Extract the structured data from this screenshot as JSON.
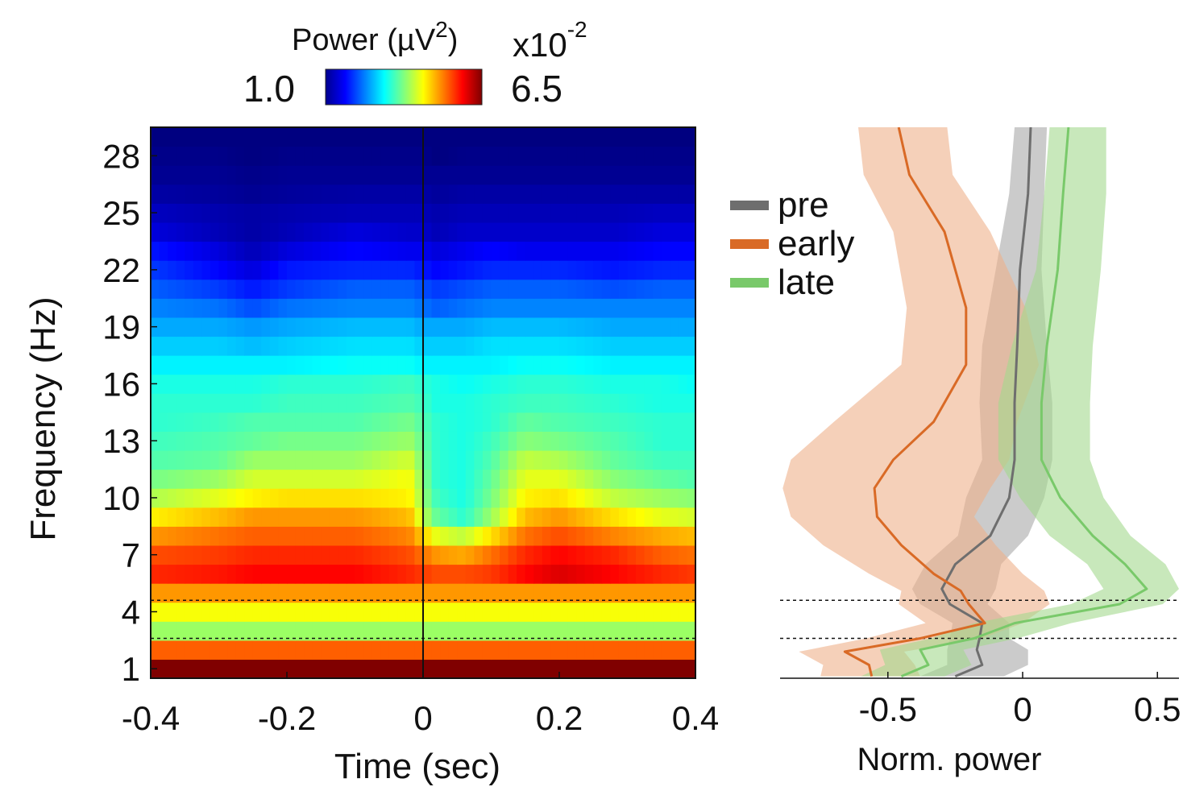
{
  "colorbar": {
    "title": "Power (µV",
    "title_sup": "2",
    "title_close": ")",
    "multiplier": "x10",
    "multiplier_exp": "-2",
    "min_label": "1.0",
    "max_label": "6.5",
    "colormap": "jet"
  },
  "chart_data": [
    {
      "type": "heatmap",
      "name": "time-frequency power",
      "xlabel": "Time (sec)",
      "ylabel": "Frequency (Hz)",
      "xlim": [
        -0.4,
        0.4
      ],
      "ylim": [
        0.5,
        29.5
      ],
      "x_ticks": [
        -0.4,
        -0.2,
        0,
        0.2,
        0.4
      ],
      "x_tick_labels": [
        "-0.4",
        "-0.2",
        "0",
        "0.2",
        "0.4"
      ],
      "y_ticks": [
        1,
        4,
        7,
        10,
        13,
        16,
        19,
        22,
        25,
        28
      ],
      "y_tick_labels": [
        "1",
        "4",
        "7",
        "10",
        "13",
        "16",
        "19",
        "22",
        "25",
        "28"
      ],
      "color_range": [
        1.0,
        6.5
      ],
      "color_unit_multiplier": 0.01,
      "event_line_x": 0,
      "dashed_lines_y": [
        2.6,
        4.6
      ],
      "y_bins": [
        1,
        2,
        3,
        4,
        5,
        6,
        7,
        8,
        9,
        10,
        11,
        12,
        13,
        14,
        15,
        16,
        17,
        18,
        19,
        20,
        21,
        22,
        23,
        24,
        25,
        26,
        27,
        28,
        29
      ],
      "profile_time_points": [
        -0.4,
        -0.3,
        -0.25,
        -0.2,
        -0.1,
        -0.02,
        0,
        0.02,
        0.06,
        0.1,
        0.15,
        0.2,
        0.28,
        0.35,
        0.4
      ],
      "profiles": {
        "1": [
          6.5,
          6.5,
          6.5,
          6.5,
          6.5,
          6.5,
          6.5,
          6.5,
          6.5,
          6.5,
          6.5,
          6.5,
          6.5,
          6.5,
          6.5
        ],
        "2": [
          5.3,
          5.3,
          5.3,
          5.3,
          5.3,
          5.3,
          5.3,
          5.3,
          5.3,
          5.3,
          5.3,
          5.3,
          5.3,
          5.3,
          5.3
        ],
        "3": [
          3.9,
          3.9,
          3.9,
          3.9,
          3.9,
          3.9,
          3.9,
          3.9,
          3.9,
          3.9,
          3.9,
          3.9,
          3.9,
          3.9,
          3.9
        ],
        "4": [
          4.4,
          4.4,
          4.4,
          4.4,
          4.4,
          4.4,
          4.4,
          4.4,
          4.4,
          4.4,
          4.4,
          4.4,
          4.4,
          4.4,
          4.4
        ],
        "5": [
          5.0,
          5.0,
          5.0,
          5.0,
          5.0,
          5.0,
          5.0,
          5.0,
          5.0,
          5.0,
          5.0,
          5.0,
          5.0,
          5.0,
          5.0
        ],
        "6": [
          5.6,
          5.7,
          5.8,
          5.8,
          5.8,
          5.6,
          5.5,
          5.4,
          5.4,
          5.5,
          5.8,
          6.0,
          5.8,
          5.6,
          5.5
        ],
        "7": [
          5.4,
          5.5,
          5.6,
          5.6,
          5.6,
          5.4,
          5.2,
          5.0,
          4.9,
          5.2,
          5.6,
          5.8,
          5.6,
          5.3,
          5.2
        ],
        "8": [
          5.0,
          5.2,
          5.3,
          5.3,
          5.3,
          5.1,
          4.7,
          4.3,
          4.1,
          4.6,
          5.2,
          5.4,
          5.1,
          4.9,
          4.8
        ],
        "9": [
          4.5,
          4.8,
          5.0,
          5.0,
          5.0,
          4.8,
          4.1,
          3.6,
          3.3,
          3.9,
          4.8,
          5.0,
          4.6,
          4.3,
          4.2
        ],
        "10": [
          4.0,
          4.3,
          4.5,
          4.6,
          4.6,
          4.5,
          3.9,
          3.4,
          3.2,
          3.7,
          4.5,
          4.6,
          4.1,
          3.9,
          3.8
        ],
        "11": [
          3.7,
          3.9,
          4.2,
          4.2,
          4.2,
          4.4,
          3.8,
          3.3,
          3.2,
          3.6,
          4.3,
          4.3,
          3.8,
          3.6,
          3.5
        ],
        "12": [
          3.5,
          3.6,
          3.9,
          3.9,
          3.9,
          4.2,
          3.7,
          3.3,
          3.2,
          3.5,
          4.1,
          4.0,
          3.6,
          3.4,
          3.4
        ],
        "13": [
          3.4,
          3.5,
          3.6,
          3.7,
          3.7,
          3.9,
          3.6,
          3.3,
          3.2,
          3.4,
          3.8,
          3.7,
          3.5,
          3.3,
          3.3
        ],
        "14": [
          3.3,
          3.4,
          3.5,
          3.5,
          3.5,
          3.7,
          3.5,
          3.3,
          3.2,
          3.3,
          3.6,
          3.5,
          3.4,
          3.3,
          3.3
        ],
        "15": [
          3.3,
          3.3,
          3.3,
          3.4,
          3.4,
          3.5,
          3.4,
          3.2,
          3.2,
          3.3,
          3.4,
          3.4,
          3.3,
          3.2,
          3.2
        ],
        "16": [
          3.2,
          3.2,
          3.2,
          3.3,
          3.3,
          3.4,
          3.3,
          3.2,
          3.1,
          3.2,
          3.3,
          3.3,
          3.2,
          3.2,
          3.1
        ],
        "17": [
          3.0,
          3.0,
          3.0,
          3.0,
          3.1,
          3.1,
          3.0,
          3.0,
          3.0,
          3.0,
          3.1,
          3.1,
          3.0,
          3.0,
          3.0
        ],
        "18": [
          2.8,
          2.8,
          2.7,
          2.8,
          2.9,
          2.9,
          2.8,
          2.8,
          2.8,
          2.9,
          2.9,
          2.9,
          2.8,
          2.8,
          2.8
        ],
        "19": [
          2.6,
          2.6,
          2.5,
          2.6,
          2.7,
          2.7,
          2.6,
          2.6,
          2.6,
          2.7,
          2.7,
          2.7,
          2.6,
          2.6,
          2.6
        ],
        "20": [
          2.4,
          2.3,
          2.1,
          2.3,
          2.4,
          2.4,
          2.3,
          2.2,
          2.3,
          2.4,
          2.4,
          2.4,
          2.4,
          2.4,
          2.4
        ],
        "21": [
          2.2,
          2.0,
          1.8,
          2.0,
          2.2,
          2.2,
          2.1,
          2.0,
          2.1,
          2.2,
          2.2,
          2.2,
          2.1,
          2.2,
          2.2
        ],
        "22": [
          2.0,
          1.7,
          1.5,
          1.8,
          1.9,
          1.9,
          1.8,
          1.7,
          1.8,
          1.9,
          1.9,
          1.9,
          1.8,
          1.9,
          1.9
        ],
        "23": [
          1.8,
          1.5,
          1.3,
          1.5,
          1.7,
          1.6,
          1.6,
          1.5,
          1.6,
          1.7,
          1.6,
          1.6,
          1.6,
          1.7,
          1.7
        ],
        "24": [
          1.5,
          1.3,
          1.2,
          1.3,
          1.5,
          1.4,
          1.4,
          1.3,
          1.4,
          1.4,
          1.4,
          1.4,
          1.4,
          1.5,
          1.5
        ],
        "25": [
          1.35,
          1.25,
          1.2,
          1.25,
          1.3,
          1.3,
          1.3,
          1.25,
          1.3,
          1.3,
          1.3,
          1.3,
          1.3,
          1.35,
          1.35
        ],
        "26": [
          1.2,
          1.15,
          1.1,
          1.15,
          1.2,
          1.2,
          1.2,
          1.15,
          1.2,
          1.2,
          1.2,
          1.2,
          1.2,
          1.2,
          1.2
        ],
        "27": [
          1.1,
          1.1,
          1.05,
          1.1,
          1.1,
          1.1,
          1.1,
          1.1,
          1.1,
          1.1,
          1.1,
          1.1,
          1.1,
          1.1,
          1.1
        ],
        "28": [
          1.05,
          1.05,
          1.0,
          1.05,
          1.05,
          1.05,
          1.05,
          1.0,
          1.05,
          1.05,
          1.05,
          1.05,
          1.05,
          1.05,
          1.05
        ],
        "29": [
          1.0,
          1.0,
          1.0,
          1.0,
          1.0,
          1.0,
          1.0,
          1.0,
          1.0,
          1.0,
          1.0,
          1.0,
          1.0,
          1.0,
          1.0
        ]
      }
    },
    {
      "type": "line",
      "name": "normalized power by frequency",
      "xlabel": "Norm. power",
      "ylabel": "",
      "xlim": [
        -0.9,
        0.58
      ],
      "ylim": [
        0.5,
        29.5
      ],
      "x_ticks": [
        -0.5,
        0,
        0.5
      ],
      "x_tick_labels": [
        "-0.5",
        "0",
        "0.5"
      ],
      "dashed_lines_y": [
        2.6,
        4.6
      ],
      "legend": {
        "position": "upper-left"
      },
      "series": [
        {
          "name": "pre",
          "color": "#6e6e6e",
          "band_color": "#a9a9a9",
          "points": [
            {
              "y": 29.5,
              "x": 0.03,
              "lo": -0.03,
              "hi": 0.09
            },
            {
              "y": 26,
              "x": 0.02,
              "lo": -0.05,
              "hi": 0.08
            },
            {
              "y": 22,
              "x": -0.01,
              "lo": -0.1,
              "hi": 0.07
            },
            {
              "y": 18,
              "x": -0.02,
              "lo": -0.15,
              "hi": 0.09
            },
            {
              "y": 15,
              "x": -0.03,
              "lo": -0.16,
              "hi": 0.11
            },
            {
              "y": 12,
              "x": -0.03,
              "lo": -0.15,
              "hi": 0.11
            },
            {
              "y": 10,
              "x": -0.05,
              "lo": -0.21,
              "hi": 0.08
            },
            {
              "y": 8,
              "x": -0.12,
              "lo": -0.24,
              "hi": 0.02
            },
            {
              "y": 6.5,
              "x": -0.25,
              "lo": -0.36,
              "hi": -0.08
            },
            {
              "y": 5.2,
              "x": -0.3,
              "lo": -0.41,
              "hi": -0.1
            },
            {
              "y": 4.4,
              "x": -0.27,
              "lo": -0.38,
              "hi": -0.13
            },
            {
              "y": 3.4,
              "x": -0.15,
              "lo": -0.26,
              "hi": -0.05
            },
            {
              "y": 2.6,
              "x": -0.16,
              "lo": -0.27,
              "hi": -0.05
            },
            {
              "y": 2.0,
              "x": -0.17,
              "lo": -0.28,
              "hi": 0.02
            },
            {
              "y": 1.2,
              "x": -0.15,
              "lo": -0.28,
              "hi": 0.02
            },
            {
              "y": 0.6,
              "x": -0.25,
              "lo": -0.38,
              "hi": -0.07
            }
          ]
        },
        {
          "name": "early",
          "color": "#d96a26",
          "band_color": "#eeb08a",
          "points": [
            {
              "y": 29.5,
              "x": -0.46,
              "lo": -0.61,
              "hi": -0.28
            },
            {
              "y": 27,
              "x": -0.42,
              "lo": -0.59,
              "hi": -0.26
            },
            {
              "y": 24,
              "x": -0.29,
              "lo": -0.48,
              "hi": -0.12
            },
            {
              "y": 20,
              "x": -0.21,
              "lo": -0.43,
              "hi": 0.01
            },
            {
              "y": 17,
              "x": -0.21,
              "lo": -0.45,
              "hi": 0.06
            },
            {
              "y": 14,
              "x": -0.33,
              "lo": -0.7,
              "hi": -0.02
            },
            {
              "y": 12,
              "x": -0.48,
              "lo": -0.86,
              "hi": -0.05
            },
            {
              "y": 10.5,
              "x": -0.55,
              "lo": -0.89,
              "hi": -0.12
            },
            {
              "y": 9,
              "x": -0.54,
              "lo": -0.86,
              "hi": -0.18
            },
            {
              "y": 7.5,
              "x": -0.45,
              "lo": -0.74,
              "hi": -0.1
            },
            {
              "y": 6,
              "x": -0.33,
              "lo": -0.57,
              "hi": 0.0
            },
            {
              "y": 5.1,
              "x": -0.23,
              "lo": -0.45,
              "hi": 0.08
            },
            {
              "y": 4.4,
              "x": -0.2,
              "lo": -0.46,
              "hi": 0.1
            },
            {
              "y": 3.4,
              "x": -0.14,
              "lo": -0.36,
              "hi": 0.0
            },
            {
              "y": 2.6,
              "x": -0.38,
              "lo": -0.58,
              "hi": -0.15
            },
            {
              "y": 1.9,
              "x": -0.66,
              "lo": -0.83,
              "hi": -0.44
            },
            {
              "y": 1.2,
              "x": -0.57,
              "lo": -0.74,
              "hi": -0.4
            },
            {
              "y": 0.6,
              "x": -0.56,
              "lo": -0.75,
              "hi": -0.38
            }
          ]
        },
        {
          "name": "late",
          "color": "#79c96a",
          "band_color": "#a4d88e",
          "points": [
            {
              "y": 29.5,
              "x": 0.17,
              "lo": 0.1,
              "hi": 0.31
            },
            {
              "y": 26,
              "x": 0.15,
              "lo": 0.08,
              "hi": 0.31
            },
            {
              "y": 22,
              "x": 0.13,
              "lo": 0.05,
              "hi": 0.29
            },
            {
              "y": 18,
              "x": 0.09,
              "lo": -0.04,
              "hi": 0.26
            },
            {
              "y": 15,
              "x": 0.07,
              "lo": -0.09,
              "hi": 0.25
            },
            {
              "y": 12,
              "x": 0.07,
              "lo": -0.09,
              "hi": 0.25
            },
            {
              "y": 10,
              "x": 0.14,
              "lo": -0.01,
              "hi": 0.3
            },
            {
              "y": 8,
              "x": 0.26,
              "lo": 0.1,
              "hi": 0.4
            },
            {
              "y": 6.5,
              "x": 0.38,
              "lo": 0.24,
              "hi": 0.53
            },
            {
              "y": 5.2,
              "x": 0.46,
              "lo": 0.3,
              "hi": 0.58
            },
            {
              "y": 4.4,
              "x": 0.36,
              "lo": 0.18,
              "hi": 0.52
            },
            {
              "y": 3.4,
              "x": -0.03,
              "lo": -0.18,
              "hi": 0.18
            },
            {
              "y": 2.6,
              "x": -0.18,
              "lo": -0.34,
              "hi": -0.02
            },
            {
              "y": 2.0,
              "x": -0.38,
              "lo": -0.53,
              "hi": -0.22
            },
            {
              "y": 1.2,
              "x": -0.35,
              "lo": -0.51,
              "hi": -0.19
            },
            {
              "y": 0.6,
              "x": -0.45,
              "lo": -0.6,
              "hi": -0.29
            }
          ]
        }
      ]
    }
  ]
}
